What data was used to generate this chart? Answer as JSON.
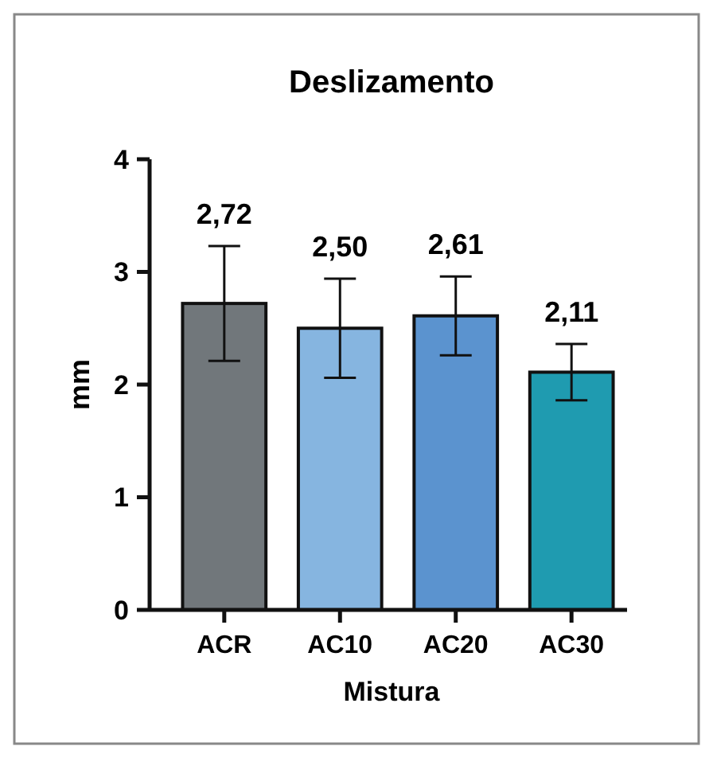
{
  "chart_data": {
    "type": "bar",
    "title": "Deslizamento",
    "xlabel": "Mistura",
    "ylabel": "mm",
    "categories": [
      "ACR",
      "AC10",
      "AC20",
      "AC30"
    ],
    "values": [
      2.72,
      2.5,
      2.61,
      2.11
    ],
    "colors": [
      "#71777b",
      "#86b5e0",
      "#5b93cf",
      "#1f9bb0"
    ],
    "errors": [
      0.51,
      0.44,
      0.35,
      0.25
    ],
    "value_labels": [
      "2,72",
      "2,50",
      "2,61",
      "2,11"
    ],
    "ylim": [
      0,
      4
    ],
    "yticks": [
      0,
      1,
      2,
      3,
      4
    ],
    "grid": false
  }
}
